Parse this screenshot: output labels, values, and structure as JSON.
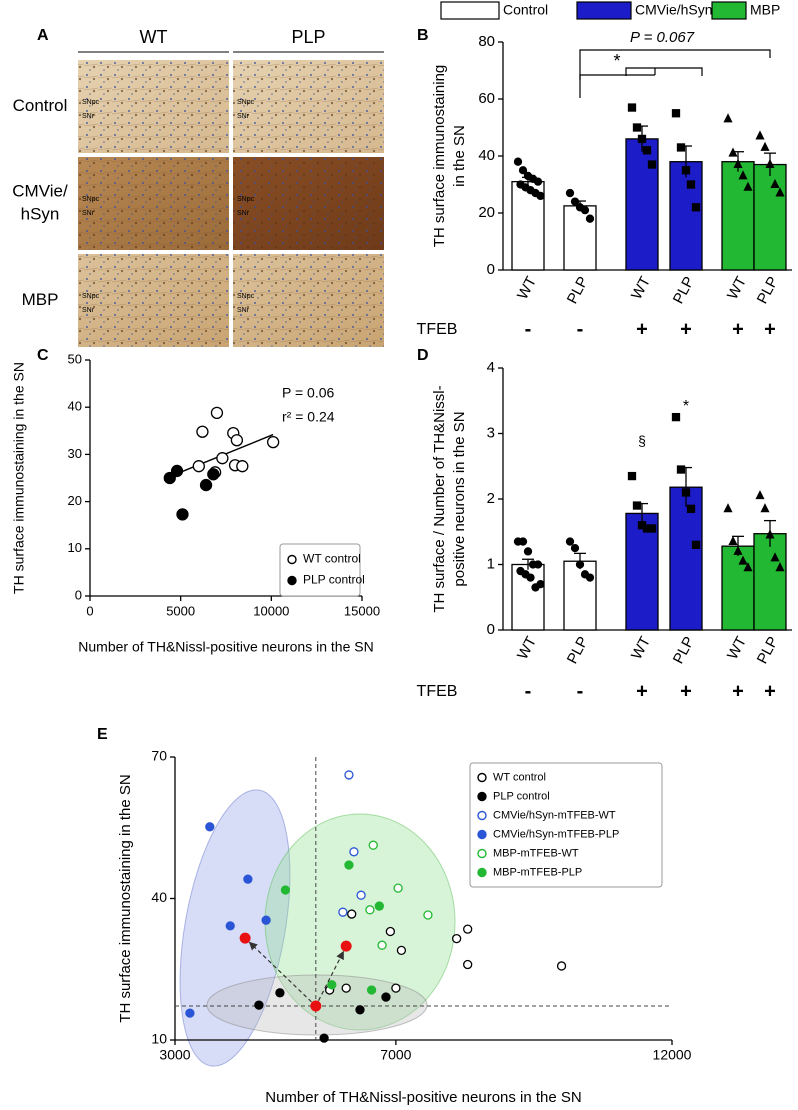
{
  "panel_a": {
    "panel": "A",
    "columns": [
      "WT",
      "PLP"
    ],
    "rows": [
      [
        "Control"
      ],
      [
        "CMVie/",
        "hSyn"
      ],
      [
        "MBP"
      ]
    ],
    "row_colors": [
      "#000000",
      "#3a5bd9",
      "#22a033"
    ],
    "image_labels": [
      "SNpc",
      "SNr"
    ]
  },
  "chart_data": [
    {
      "panel": "B",
      "type": "bar",
      "ylabel": [
        "TH surface immunostaining",
        "in the SN"
      ],
      "categories": [
        "WT",
        "PLP",
        "WT",
        "PLP",
        "WT",
        "PLP"
      ],
      "group_label": "TFEB",
      "group_marks": [
        "-",
        "-",
        "+",
        "+",
        "+",
        "+"
      ],
      "ylim": [
        0,
        80
      ],
      "yticks": [
        0,
        20,
        40,
        60,
        80
      ],
      "legend": "top",
      "annotations": [
        "*",
        "P = 0.067"
      ],
      "series": [
        {
          "name": "Control",
          "color": "#ffffff",
          "marker": "circle",
          "values": [
            31,
            22.5,
            null,
            null,
            null,
            null
          ],
          "errors": [
            1.5,
            1.7,
            null,
            null,
            null,
            null
          ],
          "points": [
            [
              38,
              35,
              33,
              32,
              31,
              30,
              29,
              28,
              27,
              26
            ],
            [
              27,
              24,
              22,
              21,
              18
            ],
            null,
            null,
            null,
            null
          ]
        },
        {
          "name": "CMVie/hSyn",
          "color": "#1c1cc8",
          "marker": "square",
          "values": [
            null,
            null,
            46,
            38,
            null,
            null
          ],
          "errors": [
            null,
            null,
            4.5,
            5.5,
            null,
            null
          ],
          "points": [
            null,
            null,
            [
              57,
              50,
              46,
              42,
              37
            ],
            [
              55,
              43,
              35,
              30,
              22
            ],
            null,
            null
          ]
        },
        {
          "name": "MBP",
          "color": "#22b833",
          "marker": "triangle",
          "values": [
            null,
            null,
            null,
            null,
            38,
            37
          ],
          "errors": [
            null,
            null,
            null,
            null,
            3.5,
            4
          ],
          "points": [
            null,
            null,
            null,
            null,
            [
              53,
              41,
              37,
              33,
              29
            ],
            [
              47,
              43,
              37,
              30,
              27
            ]
          ]
        }
      ]
    },
    {
      "panel": "C",
      "type": "scatter",
      "xlabel": "Number of TH&Nissl-positive neurons in the SN",
      "ylabel": [
        "TH surface immunostaining in the SN"
      ],
      "xlim": [
        0,
        15000
      ],
      "xticks": [
        0,
        5000,
        10000,
        15000
      ],
      "ylim": [
        0,
        50
      ],
      "yticks": [
        0,
        10,
        20,
        30,
        40,
        50
      ],
      "legend": "lower right",
      "annotations": [
        "P = 0.06",
        "r² = 0.24"
      ],
      "fit": {
        "x": [
          4400,
          10100
        ],
        "y": [
          25.3,
          34.2
        ]
      },
      "series": [
        {
          "name": "WT control",
          "color": "#000000",
          "filled": false,
          "x": [
            6200,
            7000,
            6000,
            6900,
            7300,
            7900,
            8100,
            8000,
            8400,
            10100
          ],
          "y": [
            34.8,
            38.8,
            27.5,
            26.2,
            29.2,
            34.5,
            33,
            27.7,
            27.5,
            32.6
          ]
        },
        {
          "name": "PLP control",
          "color": "#000000",
          "filled": true,
          "x": [
            4400,
            4800,
            5100,
            6400,
            6800
          ],
          "y": [
            25,
            26.5,
            17.3,
            23.5,
            25.8
          ]
        }
      ]
    },
    {
      "panel": "D",
      "type": "bar",
      "ylabel": [
        "TH surface / Number of TH&Nissl-",
        "positive neurons in the SN"
      ],
      "categories": [
        "WT",
        "PLP",
        "WT",
        "PLP",
        "WT",
        "PLP"
      ],
      "group_label": "TFEB",
      "group_marks": [
        "-",
        "-",
        "+",
        "+",
        "+",
        "+"
      ],
      "ylim": [
        0,
        4
      ],
      "yticks": [
        0,
        1,
        2,
        3,
        4
      ],
      "annotations": [
        "§",
        "*"
      ],
      "series": [
        {
          "color": "#ffffff",
          "marker": "circle",
          "values": [
            1.0,
            1.05,
            null,
            null,
            null,
            null
          ],
          "errors": [
            0.08,
            0.12,
            null,
            null,
            null,
            null
          ],
          "points": [
            [
              1.35,
              1.35,
              1.2,
              1.0,
              1.0,
              0.9,
              0.85,
              0.8,
              0.65,
              0.7
            ],
            [
              1.35,
              1.25,
              1.0,
              0.85,
              0.8
            ],
            null,
            null,
            null,
            null
          ]
        },
        {
          "color": "#1c1cc8",
          "marker": "square",
          "values": [
            null,
            null,
            1.78,
            2.18,
            null,
            null
          ],
          "errors": [
            null,
            null,
            0.15,
            0.3,
            null,
            null
          ],
          "points": [
            null,
            null,
            [
              2.35,
              1.9,
              1.6,
              1.55,
              1.55
            ],
            [
              3.25,
              2.45,
              2.1,
              1.85,
              1.3
            ],
            null,
            null
          ]
        },
        {
          "color": "#22b833",
          "marker": "triangle",
          "values": [
            null,
            null,
            null,
            null,
            1.28,
            1.47
          ],
          "errors": [
            null,
            null,
            null,
            null,
            0.15,
            0.2
          ],
          "points": [
            null,
            null,
            null,
            null,
            [
              1.85,
              1.35,
              1.2,
              1.05,
              0.95
            ],
            [
              2.05,
              1.85,
              1.45,
              1.1,
              0.95
            ]
          ]
        }
      ]
    },
    {
      "panel": "E",
      "type": "scatter",
      "xlabel": "Number of TH&Nissl-positive neurons in the SN",
      "ylabel": [
        "TH surface immunostaining in the SN"
      ],
      "xlim": [
        3000,
        12000
      ],
      "xticks": [
        3000,
        7000,
        12000
      ],
      "ylim": [
        10,
        70
      ],
      "yticks": [
        10,
        40,
        70
      ],
      "legend": "upper right",
      "ref_lines": {
        "x": 5550,
        "y": 17.2
      },
      "means": {
        "color": "#e81010",
        "x": [
          5550,
          4270,
          6100
        ],
        "y": [
          17.2,
          31.6,
          29.9
        ]
      },
      "series": [
        {
          "name": "WT control",
          "color": "#000000",
          "filled": false,
          "x": [
            6200,
            6900,
            7100,
            8300,
            8100,
            8300,
            10000,
            6100,
            7000,
            5800
          ],
          "y": [
            36.7,
            33,
            29,
            33.5,
            31.5,
            26,
            25.7,
            21,
            21,
            20.6
          ]
        },
        {
          "name": "PLP control",
          "color": "#000000",
          "filled": true,
          "x": [
            4520,
            4900,
            5700,
            6350,
            6820
          ],
          "y": [
            17.4,
            20,
            10.4,
            16.4,
            19.1
          ]
        },
        {
          "name": "CMVie/hSyn-mTFEB-WT",
          "color": "#2a55d6",
          "filled": false,
          "x": [
            6150,
            6240,
            6370,
            6040
          ],
          "y": [
            66.2,
            49.9,
            40.7,
            37.1
          ]
        },
        {
          "name": "CMVie/hSyn-mTFEB-PLP",
          "color": "#2a55d6",
          "filled": true,
          "x": [
            3630,
            4320,
            4000,
            4650,
            3270
          ],
          "y": [
            55.2,
            44.1,
            34.2,
            35.4,
            15.7
          ]
        },
        {
          "name": "MBP-mTFEB-WT",
          "color": "#22b833",
          "filled": false,
          "x": [
            6590,
            6530,
            7040,
            6750,
            7580
          ],
          "y": [
            51.3,
            37.6,
            42.2,
            30.1,
            36.5
          ]
        },
        {
          "name": "MBP-mTFEB-PLP",
          "color": "#22b833",
          "filled": true,
          "x": [
            6150,
            5000,
            6700,
            5840,
            6560
          ],
          "y": [
            47.1,
            41.8,
            38.4,
            21.7,
            20.6
          ]
        }
      ]
    }
  ]
}
